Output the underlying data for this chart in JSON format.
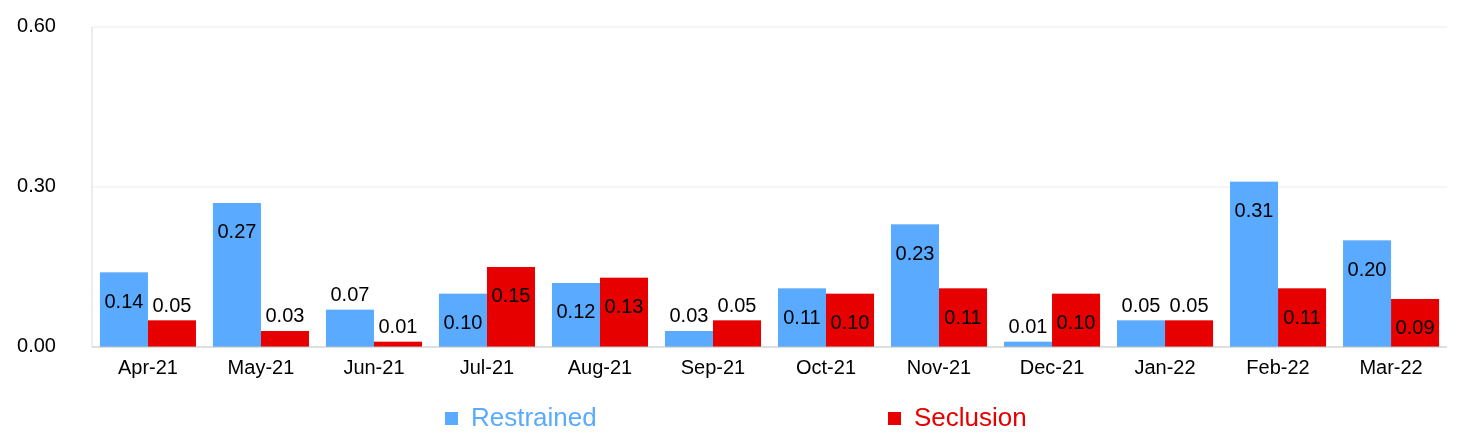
{
  "chart_data": {
    "type": "bar",
    "categories": [
      "Apr-21",
      "May-21",
      "Jun-21",
      "Jul-21",
      "Aug-21",
      "Sep-21",
      "Oct-21",
      "Nov-21",
      "Dec-21",
      "Jan-22",
      "Feb-22",
      "Mar-22"
    ],
    "series": [
      {
        "name": "Restrained",
        "color": "#5aabff",
        "values": [
          0.14,
          0.27,
          0.07,
          0.1,
          0.12,
          0.03,
          0.11,
          0.23,
          0.01,
          0.05,
          0.31,
          0.2
        ],
        "value_labels": [
          "0.14",
          "0.27",
          "0.07",
          "0.10",
          "0.12",
          "0.03",
          "0.11",
          "0.23",
          "0.01",
          "0.05",
          "0.31",
          "0.20"
        ]
      },
      {
        "name": "Seclusion",
        "color": "#e60000",
        "values": [
          0.05,
          0.03,
          0.01,
          0.15,
          0.13,
          0.05,
          0.1,
          0.11,
          0.1,
          0.05,
          0.11,
          0.09
        ],
        "value_labels": [
          "0.05",
          "0.03",
          "0.01",
          "0.15",
          "0.13",
          "0.05",
          "0.10",
          "0.11",
          "0.10",
          "0.05",
          "0.11",
          "0.09"
        ]
      }
    ],
    "ylim": [
      0,
      0.6
    ],
    "yticks": [
      {
        "value": 0,
        "label": "0.00"
      },
      {
        "value": 0.3,
        "label": "0.30"
      },
      {
        "value": 0.6,
        "label": "0.60"
      }
    ],
    "grid": "y",
    "legend": "bottom"
  }
}
